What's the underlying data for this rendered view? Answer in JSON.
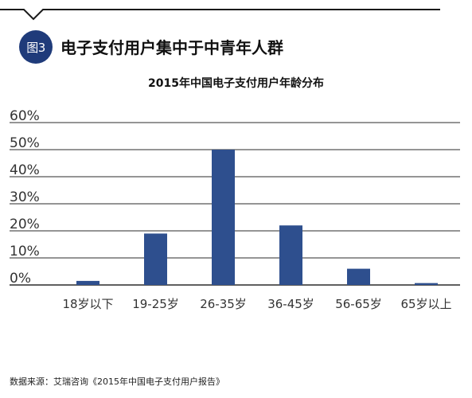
{
  "figure": {
    "badge": "图3",
    "heading": "电子支付用户集中于中青年人群"
  },
  "source_note": "数据来源：艾瑞咨询《2015年中国电子支付用户报告》",
  "colors": {
    "bar": "#2e4f8e",
    "badge": "#1f3b7a",
    "grid": "#2b2b2b"
  },
  "chart_data": {
    "type": "bar",
    "title": "2015年中国电子支付用户年龄分布",
    "xlabel": "",
    "ylabel": "",
    "categories": [
      "18岁以下",
      "19-25岁",
      "26-35岁",
      "36-45岁",
      "56-65岁",
      "65岁以上"
    ],
    "values": [
      1.5,
      19,
      50,
      22,
      6,
      0.7
    ],
    "ylim": [
      0,
      60
    ],
    "yticks": [
      0,
      10,
      20,
      30,
      40,
      50,
      60
    ],
    "ytick_labels": [
      "0%",
      "10%",
      "20%",
      "30%",
      "40%",
      "50%",
      "60%"
    ],
    "grid": true,
    "legend": "none"
  }
}
